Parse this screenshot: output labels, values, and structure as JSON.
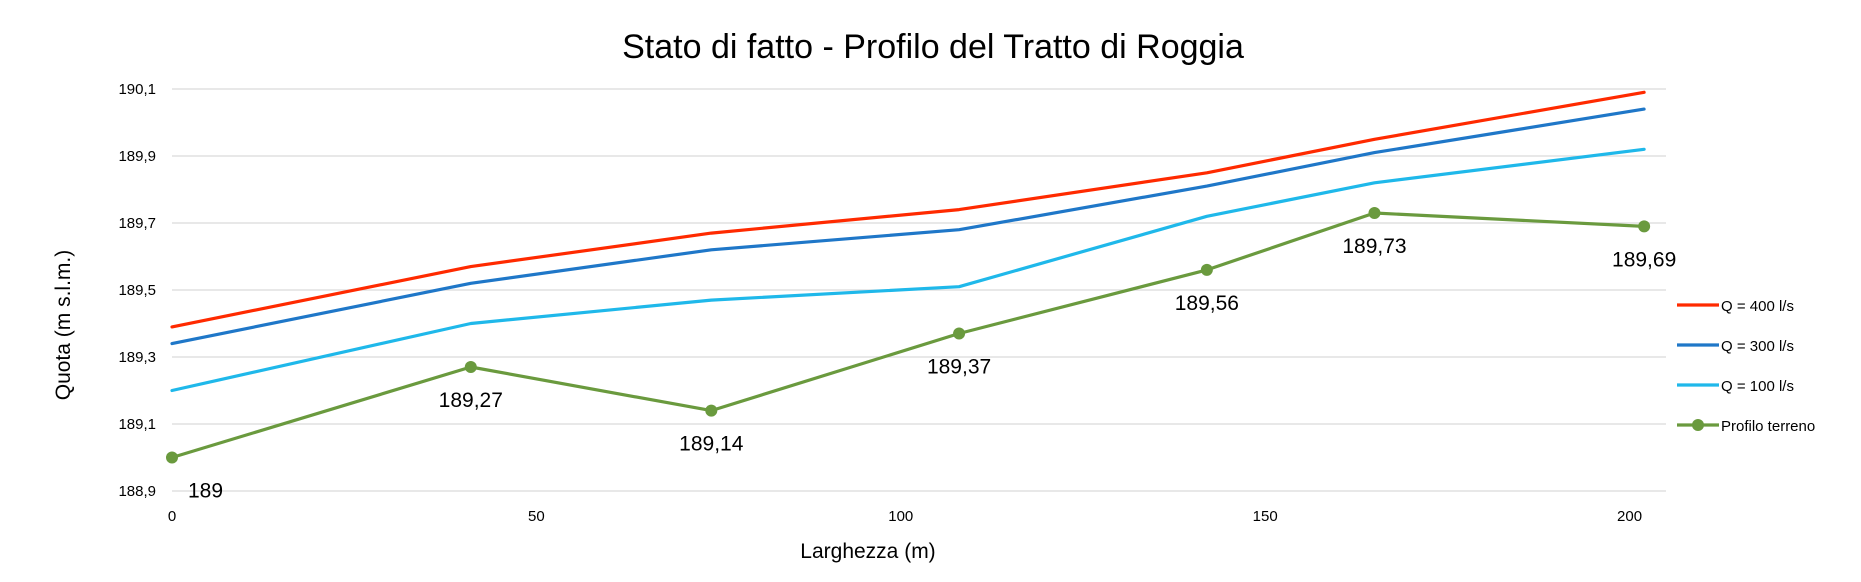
{
  "chart_data": {
    "type": "line",
    "title": "Stato di fatto - Profilo del Tratto di Roggia",
    "xlabel": "Larghezza (m)",
    "ylabel": "Quota (m s.l.m.)",
    "xlim": [
      0,
      205
    ],
    "ylim": [
      188.9,
      190.1
    ],
    "x_ticks": [
      0,
      50,
      100,
      150,
      200
    ],
    "x_tick_labels": [
      "0",
      "50",
      "100",
      "150",
      "200"
    ],
    "y_ticks": [
      188.9,
      189.1,
      189.3,
      189.5,
      189.7,
      189.9,
      190.1
    ],
    "y_tick_labels": [
      "188,9",
      "189,1",
      "189,3",
      "189,5",
      "189,7",
      "189,9",
      "190,1"
    ],
    "grid": true,
    "legend_position": "right",
    "x": [
      0,
      41,
      74,
      108,
      142,
      165,
      202
    ],
    "series": [
      {
        "name": "Q = 400 l/s",
        "color": "#ff2a00",
        "values": [
          189.39,
          189.57,
          189.67,
          189.74,
          189.85,
          189.95,
          190.09
        ],
        "markers": false
      },
      {
        "name": "Q = 300 l/s",
        "color": "#1f77c8",
        "values": [
          189.34,
          189.52,
          189.62,
          189.68,
          189.81,
          189.91,
          190.04
        ],
        "markers": false
      },
      {
        "name": "Q = 100 l/s",
        "color": "#1fb8ea",
        "values": [
          189.2,
          189.4,
          189.47,
          189.51,
          189.72,
          189.82,
          189.92
        ],
        "markers": false
      },
      {
        "name": "Profilo terreno",
        "color": "#6a9a3e",
        "values": [
          189.0,
          189.27,
          189.14,
          189.37,
          189.56,
          189.73,
          189.69
        ],
        "markers": true,
        "data_labels": [
          "189",
          "189,27",
          "189,14",
          "189,37",
          "189,56",
          "189,73",
          "189,69"
        ]
      }
    ]
  }
}
